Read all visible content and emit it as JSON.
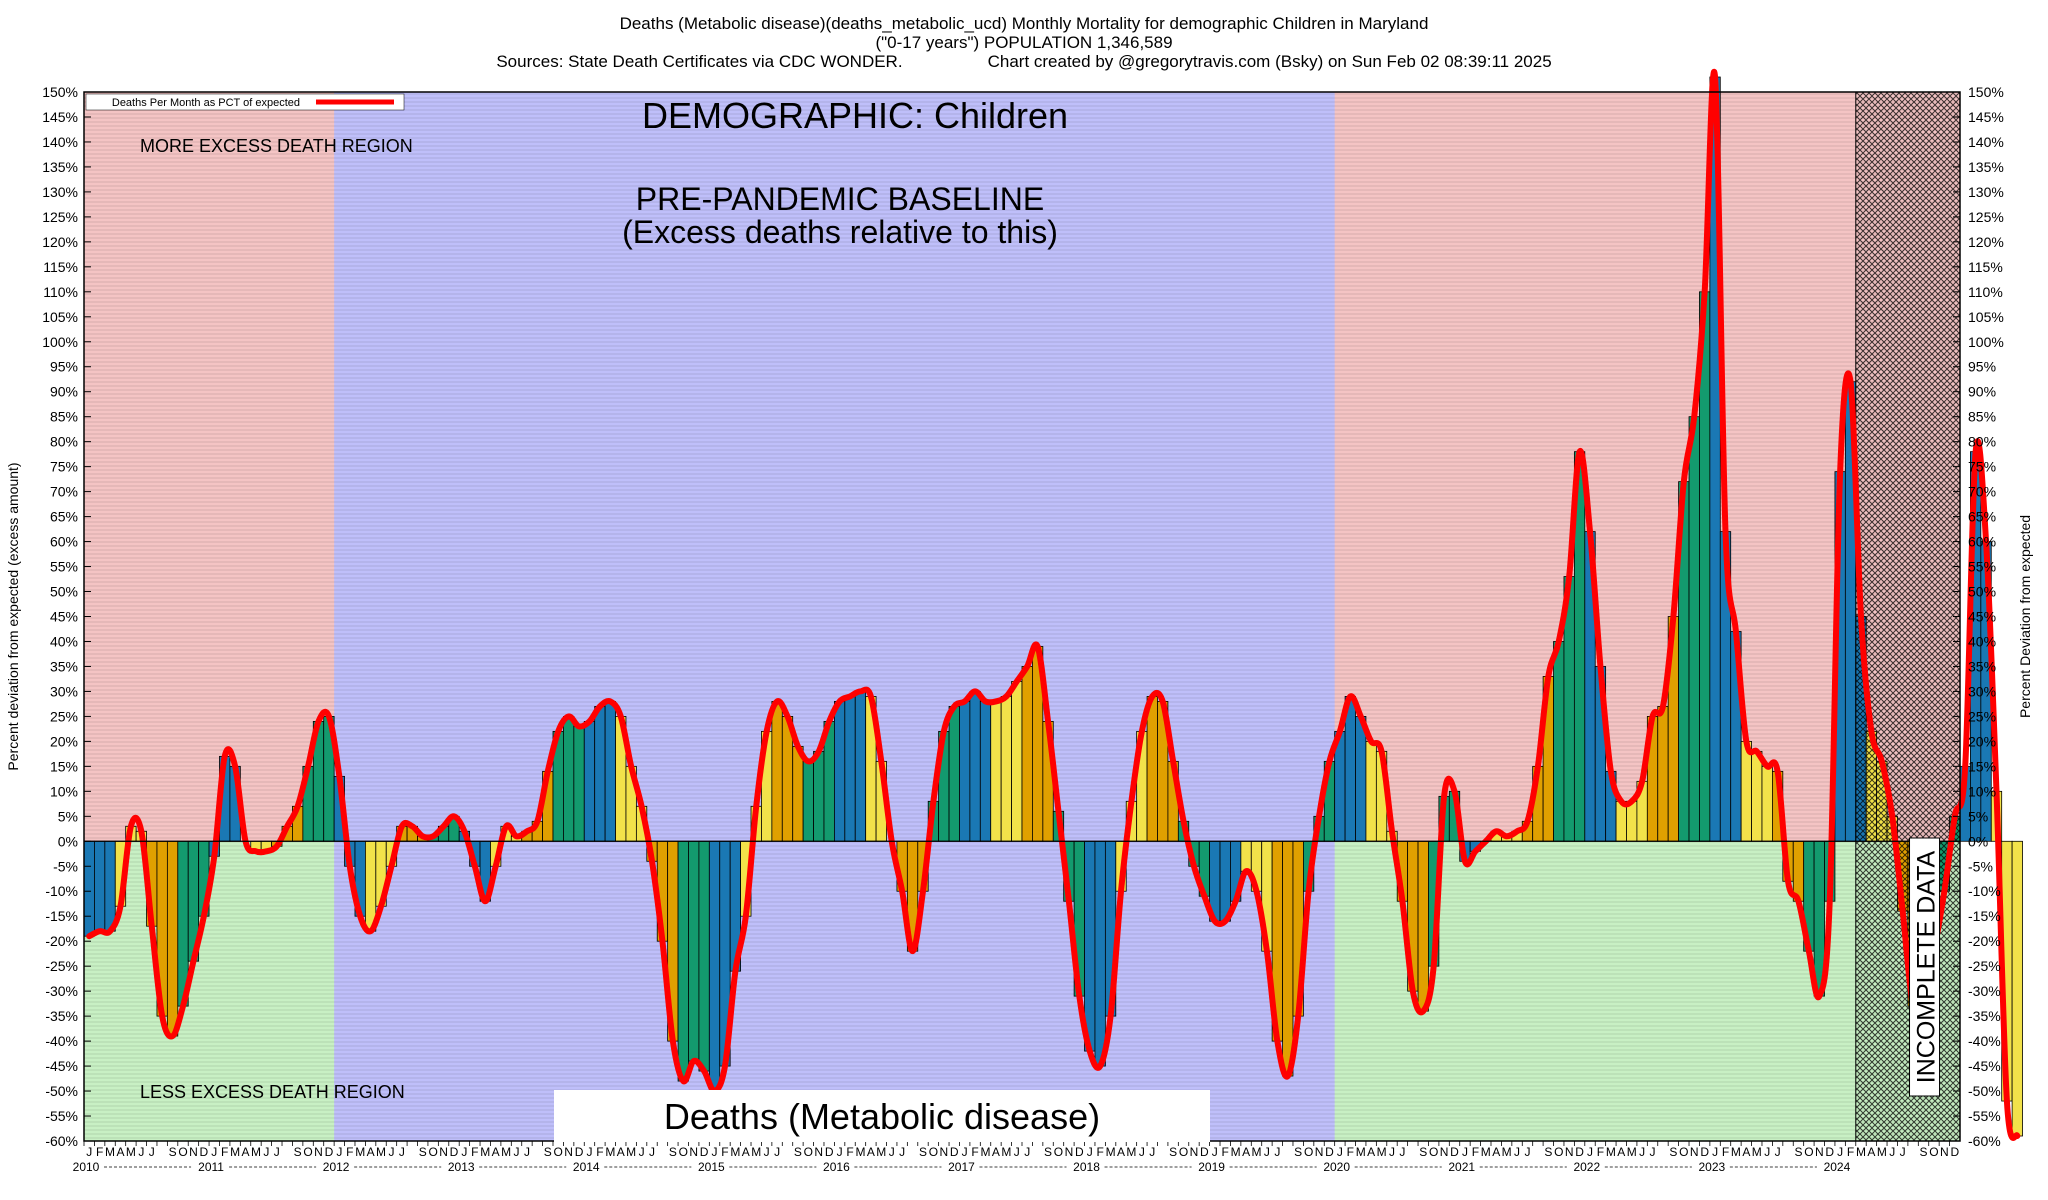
{
  "header": {
    "line1": "Deaths (Metabolic disease)(deaths_metabolic_ucd) Monthly Mortality for demographic Children in Maryland",
    "line2": "(\"0-17 years\") POPULATION 1,346,589",
    "line3_left": "Sources: State Death Certificates via CDC WONDER.",
    "line3_right": "Chart created by @gregorytravis.com (Bsky) on Sun Feb 02 08:39:11 2025"
  },
  "chart_data": {
    "type": "bar",
    "title": "DEMOGRAPHIC: Children",
    "subtitle": "Deaths (Metabolic disease)",
    "baseline_label_1": "PRE-PANDEMIC BASELINE",
    "baseline_label_2": "(Excess deaths relative to this)",
    "more_region_label": "MORE EXCESS DEATH REGION",
    "less_region_label": "LESS EXCESS DEATH REGION",
    "incomplete_label": "INCOMPLETE DATA",
    "legend_label": "Deaths Per Month as PCT of expected",
    "ylabel_left": "Percent deviation from expected (excess amount)",
    "ylabel_right": "Percent Deviation from expected",
    "ylim": [
      -60,
      150
    ],
    "ytick_step": 5,
    "grid": true,
    "legend_position": "top-left",
    "x_start": "2010-01",
    "years": [
      "2010",
      "2011",
      "2012",
      "2013",
      "2014",
      "2015",
      "2016",
      "2017",
      "2018",
      "2019",
      "2020",
      "2021",
      "2022",
      "2023",
      "2024"
    ],
    "month_letters": [
      "J",
      "F",
      "M",
      "A",
      "M",
      "J",
      "J",
      "A",
      "S",
      "O",
      "N",
      "D"
    ],
    "baseline_period": [
      "2012-01",
      "2019-12"
    ],
    "incomplete_period": [
      "2024-03",
      "2024-12"
    ],
    "colors": {
      "more_region": "#f4c4c4",
      "less_region": "#c8f0c4",
      "baseline_region": "#bfbffa",
      "line": "#ff0000",
      "quarter_bars": [
        "#1a78b4",
        "#f2e24a",
        "#e0a000",
        "#139a6e"
      ]
    },
    "series": [
      {
        "name": "Deaths Per Month as PCT of expected",
        "values": [
          -19,
          -18,
          -18,
          -13,
          3,
          2,
          -17,
          -35,
          -39,
          -33,
          -24,
          -15,
          -3,
          17,
          15,
          0,
          -2,
          -2,
          -1,
          3,
          7,
          15,
          24,
          25,
          13,
          -5,
          -15,
          -18,
          -13,
          -5,
          3,
          3,
          1,
          1,
          3,
          5,
          2,
          -5,
          -12,
          -5,
          3,
          1,
          2,
          4,
          14,
          22,
          25,
          23,
          24,
          27,
          28,
          25,
          15,
          7,
          -4,
          -20,
          -40,
          -48,
          -44,
          -46,
          -50,
          -45,
          -26,
          -15,
          7,
          22,
          28,
          25,
          19,
          16,
          18,
          24,
          28,
          29,
          30,
          29,
          16,
          0,
          -10,
          -22,
          -10,
          8,
          22,
          27,
          28,
          30,
          28,
          28,
          29,
          32,
          35,
          39,
          24,
          6,
          -12,
          -31,
          -42,
          -45,
          -35,
          -10,
          8,
          22,
          29,
          28,
          16,
          4,
          -5,
          -11,
          -16,
          -16,
          -12,
          -6,
          -10,
          -22,
          -40,
          -47,
          -35,
          -10,
          5,
          16,
          22,
          29,
          25,
          20,
          18,
          2,
          -12,
          -30,
          -34,
          -25,
          9,
          10,
          -4,
          -2,
          0,
          2,
          1,
          2,
          4,
          15,
          33,
          40,
          53,
          78,
          62,
          35,
          14,
          8,
          8,
          12,
          25,
          27,
          45,
          72,
          85,
          110,
          153,
          62,
          42,
          20,
          18,
          15,
          14,
          -8,
          -12,
          -22,
          -31,
          -12,
          74,
          92,
          45,
          22,
          16,
          5,
          -14,
          -33,
          -32,
          -22,
          -10,
          5,
          15,
          78,
          60,
          10,
          -52,
          -59
        ]
      }
    ]
  }
}
